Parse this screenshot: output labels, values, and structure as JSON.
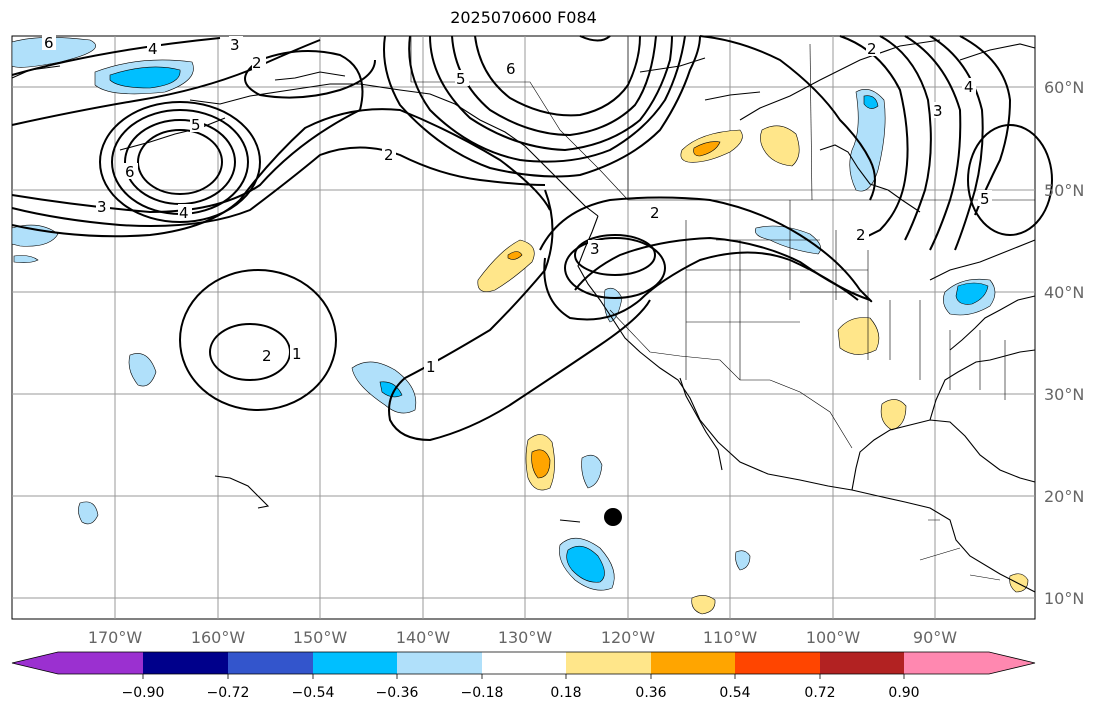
{
  "title": "2025070600 F084",
  "map": {
    "type": "weather-anomaly-map",
    "region": "North Pacific / North America",
    "lon_labels": [
      "170°W",
      "160°W",
      "150°W",
      "140°W",
      "130°W",
      "120°W",
      "110°W",
      "100°W",
      "90°W"
    ],
    "lat_labels": [
      "60°N",
      "50°N",
      "40°N",
      "30°N",
      "20°N",
      "10°N"
    ],
    "contour_labels": [
      "4",
      "3",
      "2",
      "6",
      "6",
      "3",
      "4",
      "5",
      "2",
      "5",
      "6",
      "2",
      "3",
      "2",
      "3",
      "5",
      "4",
      "2",
      "1",
      "1",
      "2"
    ],
    "marker": {
      "lon": -121.5,
      "lat": 17.8,
      "label": "storm-center"
    }
  },
  "colorbar": {
    "ticks": [
      "−0.90",
      "−0.72",
      "−0.54",
      "−0.36",
      "−0.18",
      "0.18",
      "0.36",
      "0.54",
      "0.72",
      "0.90"
    ],
    "colors": [
      "#9b30d0",
      "#00008b",
      "#3355cc",
      "#00bfff",
      "#b0e0fa",
      "#ffffff",
      "#ffe68a",
      "#ffa500",
      "#ff4500",
      "#b22222",
      "#ff88b0"
    ]
  }
}
